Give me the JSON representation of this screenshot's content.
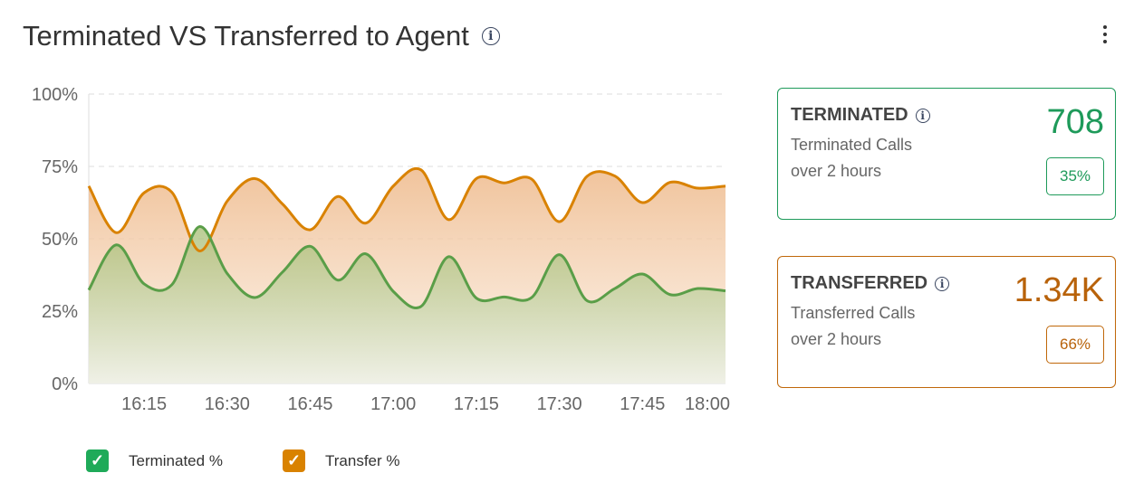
{
  "header": {
    "title": "Terminated VS Transferred to Agent",
    "info_icon": "info-icon",
    "menu_icon": "more-vertical-icon"
  },
  "colors": {
    "terminated": "#5a9e48",
    "terminated_fill": "#8cb35a",
    "transfer": "#d98200",
    "transfer_fill": "#eeb98a",
    "legend_terminated": "#1faa59",
    "legend_transfer": "#d98200",
    "card_terminated": "#1e9a5a",
    "card_transfer": "#c0680a"
  },
  "chart_data": {
    "type": "area",
    "title": "",
    "xlabel": "",
    "ylabel": "",
    "ylim": [
      0,
      100
    ],
    "y_ticks": [
      "0%",
      "25%",
      "50%",
      "75%",
      "100%"
    ],
    "x_ticks": [
      "16:15",
      "16:30",
      "16:45",
      "17:00",
      "17:15",
      "17:30",
      "17:45",
      "18:00"
    ],
    "x": [
      "16:05",
      "16:10",
      "16:15",
      "16:20",
      "16:25",
      "16:30",
      "16:35",
      "16:40",
      "16:45",
      "16:50",
      "16:55",
      "17:00",
      "17:05",
      "17:10",
      "17:15",
      "17:20",
      "17:25",
      "17:30",
      "17:35",
      "17:40",
      "17:45",
      "17:50",
      "17:55",
      "18:00"
    ],
    "grid": true,
    "legend": "bottom-left",
    "series": [
      {
        "name": "Terminated %",
        "values": [
          32.3,
          47.9,
          34.4,
          34.1,
          54.2,
          38.0,
          29.7,
          38.5,
          47.4,
          35.7,
          44.8,
          31.8,
          26.6,
          43.8,
          29.5,
          29.9,
          29.7,
          44.5,
          28.6,
          32.8,
          37.8,
          30.7,
          32.8,
          32.0
        ]
      },
      {
        "name": "Transfer %",
        "values": [
          68.2,
          52.1,
          65.9,
          66.1,
          45.8,
          63.0,
          70.8,
          62.0,
          53.1,
          64.6,
          55.4,
          68.2,
          73.8,
          56.6,
          70.8,
          69.3,
          70.6,
          55.9,
          71.6,
          71.7,
          62.5,
          69.5,
          67.5,
          68.2
        ]
      }
    ]
  },
  "cards": [
    {
      "title": "TERMINATED",
      "sub1": "Terminated Calls",
      "sub2": "over 2 hours",
      "value": "708",
      "percent": "35%"
    },
    {
      "title": "TRANSFERRED",
      "sub1": "Transferred Calls",
      "sub2": "over 2 hours",
      "value": "1.34K",
      "percent": "66%"
    }
  ],
  "legend": {
    "items": [
      {
        "label": "Terminated %",
        "checked": true
      },
      {
        "label": "Transfer %",
        "checked": true
      }
    ],
    "check_icon": "checkmark-icon"
  }
}
